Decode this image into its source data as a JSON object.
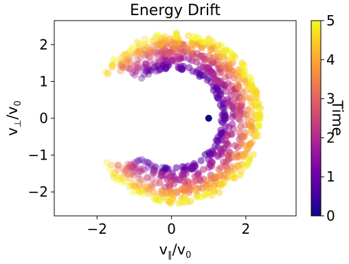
{
  "chart_data": {
    "type": "scatter",
    "title": "Energy Drift",
    "xlabel": {
      "v": "v",
      "sub": "∥",
      "rest": "/v",
      "sub2": "0"
    },
    "ylabel": {
      "v": "v",
      "sub": "⊥",
      "rest": "/v",
      "sub2": "0"
    },
    "xlim": [
      -3.15,
      3.35
    ],
    "ylim": [
      -2.65,
      2.65
    ],
    "x_ticks": [
      {
        "value": -2,
        "label": "−2"
      },
      {
        "value": 0,
        "label": "0"
      },
      {
        "value": 2,
        "label": "2"
      }
    ],
    "y_ticks": [
      {
        "value": 2,
        "label": "2"
      },
      {
        "value": 1,
        "label": "1"
      },
      {
        "value": 0,
        "label": "0"
      },
      {
        "value": -1,
        "label": "−1"
      },
      {
        "value": -2,
        "label": "−2"
      }
    ],
    "grid": false,
    "colorbar": {
      "label": "Time",
      "range": [
        0,
        5
      ],
      "ticks": [
        {
          "value": 0,
          "label": "0"
        },
        {
          "value": 1,
          "label": "1"
        },
        {
          "value": 2,
          "label": "2"
        },
        {
          "value": 3,
          "label": "3"
        },
        {
          "value": 4,
          "label": "4"
        },
        {
          "value": 5,
          "label": "5"
        }
      ],
      "colormap": [
        "#0d0887",
        "#46039f",
        "#7201a8",
        "#9c179e",
        "#bd3786",
        "#d8576b",
        "#ed7953",
        "#fb9f3a",
        "#fdca26",
        "#f0f921"
      ]
    },
    "start_point": {
      "x": 1.0,
      "y": 0.0,
      "time": 0
    },
    "series": [
      {
        "time": 0.9,
        "center": [
          0.0,
          0.0
        ],
        "radius": 1.42,
        "arc_deg": [
          -128,
          128
        ]
      },
      {
        "time": 1.9,
        "center": [
          0.02,
          0.0
        ],
        "radius": 1.62,
        "arc_deg": [
          -132,
          132
        ]
      },
      {
        "time": 2.6,
        "center": [
          0.05,
          0.0
        ],
        "radius": 1.82,
        "arc_deg": [
          -136,
          136
        ]
      },
      {
        "time": 3.4,
        "center": [
          0.07,
          0.0
        ],
        "radius": 1.98,
        "arc_deg": [
          -140,
          140
        ]
      },
      {
        "time": 4.1,
        "center": [
          0.1,
          0.0
        ],
        "radius": 2.12,
        "arc_deg": [
          -144,
          144
        ]
      },
      {
        "time": 4.8,
        "center": [
          0.12,
          0.0
        ],
        "radius": 2.25,
        "arc_deg": [
          -148,
          148
        ]
      }
    ]
  }
}
